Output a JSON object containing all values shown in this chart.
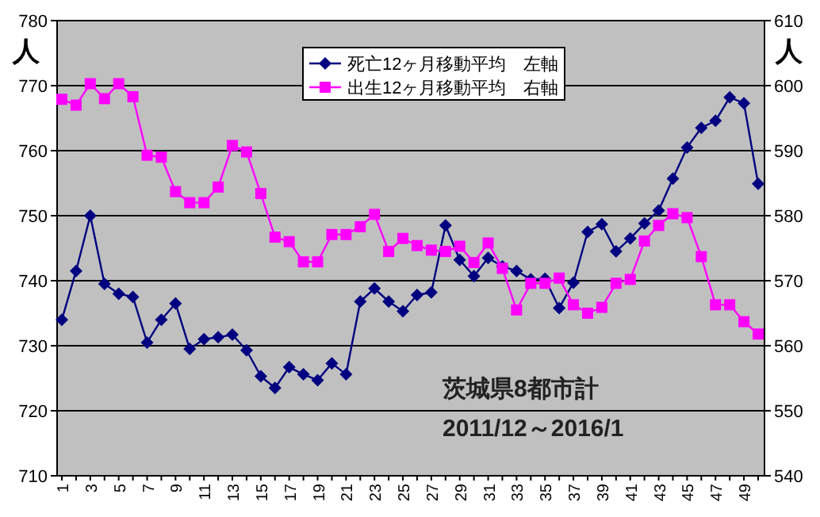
{
  "chart_data": {
    "type": "line",
    "categories": [
      "1",
      null,
      "3",
      null,
      "5",
      null,
      "7",
      null,
      "9",
      null,
      "11",
      null,
      "13",
      null,
      "15",
      null,
      "17",
      null,
      "19",
      null,
      "21",
      null,
      "23",
      null,
      "25",
      null,
      "27",
      null,
      "29",
      null,
      "31",
      null,
      "33",
      null,
      "35",
      null,
      "37",
      null,
      "39",
      null,
      "41",
      null,
      "43",
      null,
      "45",
      null,
      "47",
      null,
      "49",
      null
    ],
    "ylabel": "人",
    "y2label": "人",
    "ylim": [
      710,
      780
    ],
    "yticks": [
      710,
      720,
      730,
      740,
      750,
      760,
      770,
      780
    ],
    "y2lim": [
      540,
      610
    ],
    "y2ticks": [
      540,
      550,
      560,
      570,
      580,
      590,
      600,
      610
    ],
    "grid": "y",
    "legend": "top",
    "line_style": "solid",
    "annotations": [
      "茨城県8都市計",
      "2011/12～2016/1"
    ],
    "series": [
      {
        "name": "死亡12ヶ月移動平均　左軸",
        "color": "#000080",
        "marker": "diamond",
        "values": [
          734,
          741.5,
          750,
          739.5,
          738,
          737.5,
          730.5,
          734,
          736.5,
          729.5,
          731,
          731.3,
          731.7,
          729.3,
          725.3,
          723.5,
          726.7,
          725.6,
          724.7,
          727.3,
          725.6,
          736.8,
          738.8,
          736.8,
          735.3,
          737.8,
          738.2,
          748.5,
          743.2,
          740.7,
          743.5,
          742.2,
          741.5,
          740.2,
          740.3,
          735.8,
          739.7,
          747.5,
          748.7,
          744.5,
          746.5,
          748.8,
          750.8,
          755.7,
          760.5,
          763.5,
          764.6,
          768.2,
          767.3,
          754.9
        ]
      },
      {
        "name": "出生12ヶ月移動平均　右軸",
        "color": "#ff00ff",
        "marker": "square",
        "axis": "y2",
        "values": [
          597.9,
          597,
          600.3,
          598,
          600.3,
          598.3,
          589.3,
          589,
          583.7,
          582,
          582,
          584.4,
          590.8,
          589.8,
          583.4,
          576.7,
          576,
          572.9,
          572.9,
          577.1,
          577.1,
          578.3,
          580.2,
          574.5,
          576.5,
          575.4,
          574.7,
          574.5,
          575.3,
          572.8,
          575.8,
          571.9,
          565.5,
          569.6,
          569.6,
          570.4,
          566.3,
          565,
          565.9,
          569.6,
          570.2,
          576.1,
          578.5,
          580.3,
          579.7,
          573.7,
          566.3,
          566.3,
          563.7,
          561.8
        ]
      }
    ]
  }
}
